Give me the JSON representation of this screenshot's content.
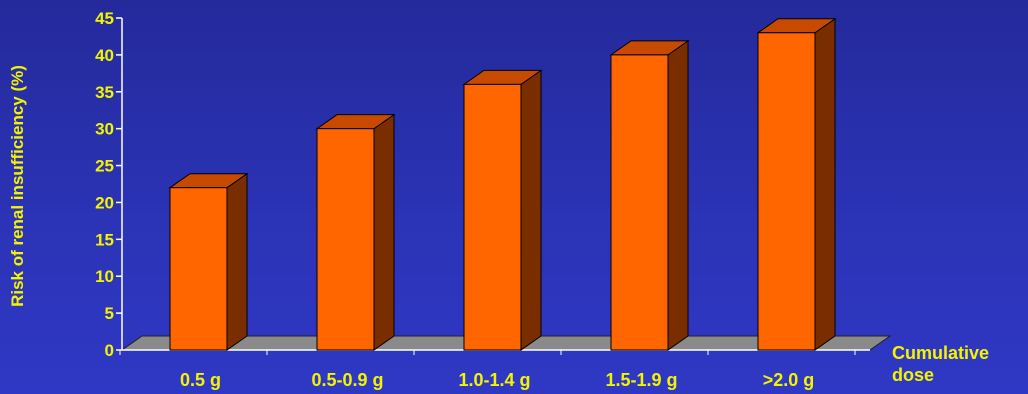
{
  "chart_data": {
    "type": "bar",
    "title": "",
    "xlabel": "Cumulative dose",
    "ylabel": "Risk of renal insufficiency (%)",
    "categories": [
      "0.5 g",
      "0.5-0.9 g",
      "1.0-1.4 g",
      "1.5-1.9 g",
      ">2.0 g"
    ],
    "values": [
      22,
      30,
      36,
      40,
      43
    ],
    "ylim": [
      0,
      45
    ],
    "yticks": [
      0,
      5,
      10,
      15,
      20,
      25,
      30,
      35,
      40,
      45
    ],
    "grid": false,
    "legend": "none",
    "colors": {
      "bar_front": "#ff6600",
      "bar_side": "#7a2e00",
      "bar_top": "#c84a00",
      "floor": "#8a8a8a",
      "text": "#f4f400",
      "axis": "#ffffff"
    }
  }
}
